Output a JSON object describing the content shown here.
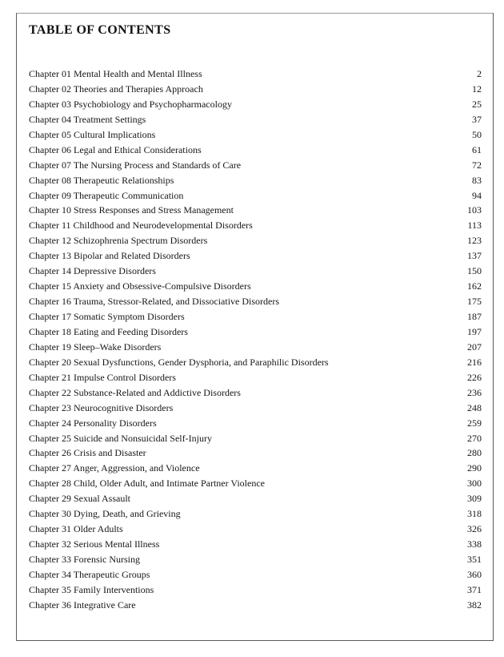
{
  "page": {
    "title": "TABLE OF CONTENTS",
    "entries": [
      {
        "label": "Chapter 01 Mental Health and Mental Illness",
        "page": "2"
      },
      {
        "label": "Chapter 02 Theories and Therapies Approach",
        "page": "12"
      },
      {
        "label": "Chapter 03 Psychobiology and Psychopharmacology",
        "page": "25"
      },
      {
        "label": "Chapter 04 Treatment Settings",
        "page": "37"
      },
      {
        "label": "Chapter 05 Cultural Implications",
        "page": "50"
      },
      {
        "label": "Chapter 06 Legal and Ethical Considerations",
        "page": "61"
      },
      {
        "label": "Chapter 07 The Nursing Process and Standards of Care",
        "page": "72"
      },
      {
        "label": "Chapter 08 Therapeutic Relationships",
        "page": "83"
      },
      {
        "label": "Chapter 09 Therapeutic Communication",
        "page": "94"
      },
      {
        "label": "Chapter 10 Stress Responses and Stress Management",
        "page": "103"
      },
      {
        "label": "Chapter 11 Childhood and Neurodevelopmental Disorders",
        "page": "113"
      },
      {
        "label": "Chapter 12 Schizophrenia Spectrum Disorders",
        "page": "123"
      },
      {
        "label": "Chapter 13 Bipolar and Related Disorders",
        "page": "137"
      },
      {
        "label": "Chapter 14 Depressive Disorders",
        "page": "150"
      },
      {
        "label": "Chapter 15 Anxiety and Obsessive-Compulsive Disorders",
        "page": "162"
      },
      {
        "label": "Chapter 16 Trauma, Stressor-Related, and Dissociative Disorders",
        "page": "175"
      },
      {
        "label": "Chapter 17 Somatic Symptom Disorders",
        "page": "187"
      },
      {
        "label": "Chapter 18 Eating and Feeding Disorders",
        "page": "197"
      },
      {
        "label": "Chapter 19 Sleep–Wake Disorders",
        "page": "207"
      },
      {
        "label": "Chapter 20 Sexual Dysfunctions, Gender Dysphoria, and Paraphilic Disorders",
        "page": "216"
      },
      {
        "label": "Chapter 21 Impulse Control Disorders",
        "page": "226"
      },
      {
        "label": "Chapter 22 Substance-Related and Addictive Disorders",
        "page": "236"
      },
      {
        "label": "Chapter 23 Neurocognitive Disorders",
        "page": "248"
      },
      {
        "label": "Chapter 24 Personality Disorders",
        "page": "259"
      },
      {
        "label": "Chapter 25 Suicide and Nonsuicidal Self-Injury",
        "page": "270"
      },
      {
        "label": "Chapter 26 Crisis and Disaster",
        "page": "280"
      },
      {
        "label": "Chapter 27 Anger, Aggression, and Violence",
        "page": "290"
      },
      {
        "label": "Chapter 28 Child, Older Adult, and Intimate Partner Violence",
        "page": "300"
      },
      {
        "label": "Chapter 29 Sexual Assault",
        "page": "309"
      },
      {
        "label": "Chapter 30 Dying, Death, and Grieving",
        "page": "318"
      },
      {
        "label": "Chapter 31 Older Adults",
        "page": "326"
      },
      {
        "label": "Chapter 32 Serious Mental Illness",
        "page": "338"
      },
      {
        "label": "Chapter 33 Forensic Nursing",
        "page": "351"
      },
      {
        "label": "Chapter 34 Therapeutic Groups",
        "page": "360"
      },
      {
        "label": "Chapter 35 Family Interventions",
        "page": "371"
      },
      {
        "label": "Chapter 36 Integrative Care",
        "page": "382"
      }
    ]
  }
}
